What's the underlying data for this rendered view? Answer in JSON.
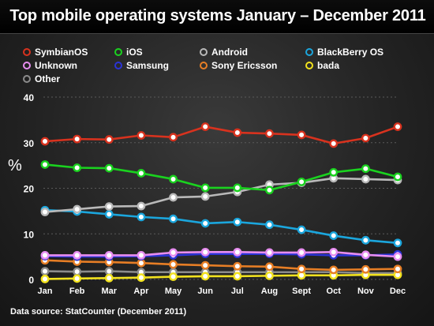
{
  "title": "Top mobile operating systems January – December 2011",
  "source": "Data source: StatCounter (December 2011)",
  "chart_data": {
    "type": "line",
    "title": "Top mobile operating systems January – December 2011",
    "xlabel": "",
    "ylabel": "%",
    "ylim": [
      0,
      40
    ],
    "yticks": [
      "0",
      "10",
      "20",
      "30",
      "40"
    ],
    "grid": true,
    "legend_position": "top",
    "categories": [
      "Jan",
      "Feb",
      "Mar",
      "Apr",
      "May",
      "Jun",
      "Jul",
      "Aug",
      "Sept",
      "Oct",
      "Nov",
      "Dec"
    ],
    "series": [
      {
        "name": "SymbianOS",
        "color": "#d8321e",
        "values": [
          30.3,
          30.8,
          30.7,
          31.6,
          31.2,
          33.5,
          32.2,
          32.0,
          31.7,
          29.8,
          31.0,
          33.5
        ]
      },
      {
        "name": "iOS",
        "color": "#1ad21f",
        "values": [
          25.2,
          24.5,
          24.4,
          23.3,
          22.0,
          20.1,
          20.1,
          19.6,
          21.4,
          23.5,
          24.3,
          22.5
        ]
      },
      {
        "name": "Android",
        "color": "#b9b9b9",
        "values": [
          14.8,
          15.4,
          16.0,
          16.1,
          18.0,
          18.2,
          19.2,
          20.8,
          21.2,
          22.2,
          22.0,
          21.8
        ]
      },
      {
        "name": "BlackBerry OS",
        "color": "#1ba6dd",
        "values": [
          15.2,
          14.9,
          14.3,
          13.7,
          13.3,
          12.3,
          12.6,
          12.0,
          10.9,
          9.6,
          8.6,
          8.0
        ]
      },
      {
        "name": "Unknown",
        "color": "#e78df0",
        "values": [
          5.3,
          5.3,
          5.3,
          5.3,
          5.9,
          6.0,
          6.0,
          5.9,
          5.9,
          6.0,
          5.4,
          5.0
        ]
      },
      {
        "name": "Samsung",
        "color": "#2a33d6",
        "values": [
          5.1,
          5.0,
          5.0,
          5.1,
          5.3,
          5.6,
          5.6,
          5.6,
          5.5,
          5.3,
          5.3,
          5.5
        ]
      },
      {
        "name": "Sony Ericsson",
        "color": "#e77e25",
        "values": [
          4.2,
          3.9,
          3.8,
          3.6,
          3.3,
          3.1,
          2.9,
          2.8,
          2.3,
          2.1,
          2.2,
          2.3
        ]
      },
      {
        "name": "bada",
        "color": "#f2e21e",
        "values": [
          0.1,
          0.2,
          0.3,
          0.4,
          0.6,
          0.7,
          0.7,
          0.8,
          0.9,
          0.9,
          1.0,
          1.0
        ]
      },
      {
        "name": "Other",
        "color": "#8c8c8c",
        "values": [
          1.8,
          1.7,
          1.8,
          1.6,
          1.6,
          1.6,
          1.6,
          1.6,
          1.6,
          1.6,
          1.4,
          1.4
        ]
      }
    ]
  }
}
